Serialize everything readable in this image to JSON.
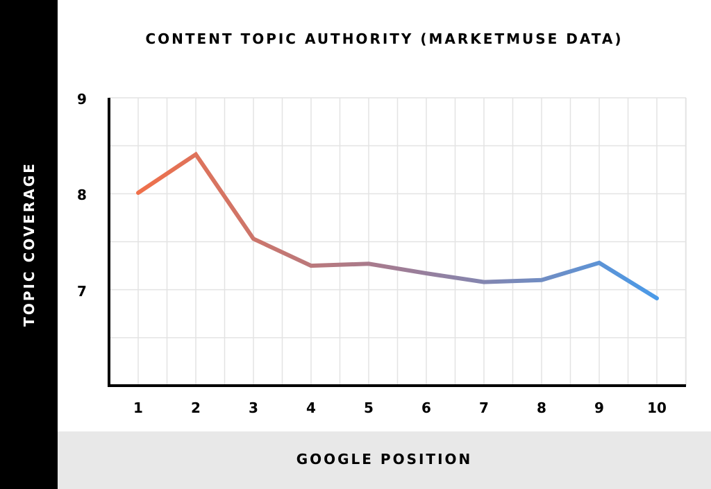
{
  "chart_data": {
    "type": "line",
    "title": "CONTENT TOPIC AUTHORITY (MARKETMUSE DATA)",
    "xlabel": "GOOGLE POSITION",
    "ylabel": "TOPIC COVERAGE",
    "categories": [
      "1",
      "2",
      "3",
      "4",
      "5",
      "6",
      "7",
      "8",
      "9",
      "10"
    ],
    "x": [
      1,
      2,
      3,
      4,
      5,
      6,
      7,
      8,
      9,
      10
    ],
    "values": [
      8.01,
      8.41,
      7.53,
      7.25,
      7.27,
      7.17,
      7.08,
      7.1,
      7.28,
      6.91
    ],
    "ylim": [
      6,
      9
    ],
    "yticks": [
      "9",
      "8",
      "7"
    ],
    "grid": true,
    "legend": null,
    "line_gradient": {
      "start": "#f0704a",
      "end": "#4a9ae8"
    }
  },
  "labels": {
    "title": "CONTENT TOPIC AUTHORITY (MARKETMUSE DATA)",
    "xlabel": "GOOGLE POSITION",
    "ylabel": "TOPIC COVERAGE",
    "yticks": {
      "t9": "9",
      "t8": "8",
      "t7": "7"
    },
    "xticks": [
      "1",
      "2",
      "3",
      "4",
      "5",
      "6",
      "7",
      "8",
      "9",
      "10"
    ]
  },
  "colors": {
    "left_band": "#000000",
    "footer": "#e8e8e8",
    "grid": "#e3e3e3",
    "axis": "#000000"
  }
}
